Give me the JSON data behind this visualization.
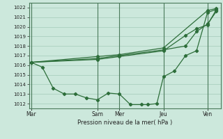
{
  "title": "Pression niveau de la mer( hPa )",
  "bg_color": "#cce8dc",
  "grid_color": "#aacfbf",
  "line_color": "#2d6e3a",
  "ylim": [
    1011.5,
    1022.5
  ],
  "yticks": [
    1012,
    1013,
    1014,
    1015,
    1016,
    1017,
    1018,
    1019,
    1020,
    1021,
    1022
  ],
  "xtick_labels": [
    "Mar",
    "Sam",
    "Mer",
    "Jeu",
    "Ven"
  ],
  "xtick_positions": [
    0,
    3,
    4,
    6,
    8
  ],
  "xlim": [
    -0.1,
    8.6
  ],
  "line1_x": [
    0,
    0.5,
    1.0,
    1.5,
    2.0,
    2.5,
    3.0,
    3.5,
    4.0,
    4.5,
    5.0,
    5.3,
    5.7,
    6.0,
    6.5,
    7.0,
    7.5,
    8.0,
    8.4
  ],
  "line1_y": [
    1016.3,
    1015.8,
    1013.6,
    1013.0,
    1013.0,
    1012.6,
    1012.4,
    1013.1,
    1013.0,
    1011.9,
    1011.9,
    1011.9,
    1012.0,
    1014.8,
    1015.4,
    1017.0,
    1017.5,
    1021.5,
    1021.8
  ],
  "line2_x": [
    0,
    3.0,
    4.0,
    6.0,
    7.0,
    7.5,
    8.0,
    8.4
  ],
  "line2_y": [
    1016.3,
    1016.6,
    1016.9,
    1017.5,
    1019.1,
    1019.8,
    1020.2,
    1021.8
  ],
  "line3_x": [
    0,
    3.0,
    4.0,
    6.0,
    7.0,
    7.5,
    8.0,
    8.4
  ],
  "line3_y": [
    1016.3,
    1016.7,
    1017.0,
    1017.6,
    1018.0,
    1019.5,
    1020.3,
    1021.6
  ],
  "line4_x": [
    0,
    3.0,
    4.0,
    6.0,
    8.0,
    8.4
  ],
  "line4_y": [
    1016.3,
    1016.9,
    1017.1,
    1017.8,
    1021.7,
    1021.9
  ]
}
